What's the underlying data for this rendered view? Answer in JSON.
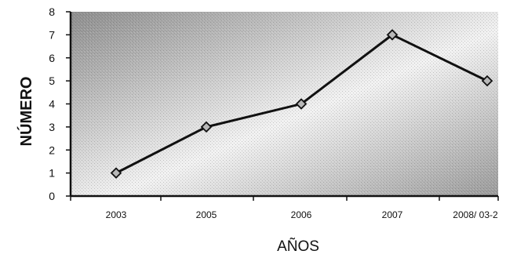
{
  "chart_data": {
    "type": "line",
    "title": "",
    "xlabel": "AÑOS",
    "ylabel": "NÚMERO",
    "categories": [
      "2003",
      "2005",
      "2006",
      "2007",
      "2008/ 03-2"
    ],
    "series": [
      {
        "name": "",
        "values": [
          1,
          3,
          4,
          7,
          5
        ]
      }
    ],
    "ylim": [
      0,
      8
    ],
    "yticks": [
      "0",
      "1",
      "2",
      "3",
      "4",
      "5",
      "6",
      "7",
      "8"
    ],
    "grid": false,
    "legend": "none",
    "colors": {
      "plot_fill_dark": "#9a9a9a",
      "plot_fill_light": "#f4f4f4",
      "line": "#111111",
      "marker": "#b8b8b8"
    }
  }
}
